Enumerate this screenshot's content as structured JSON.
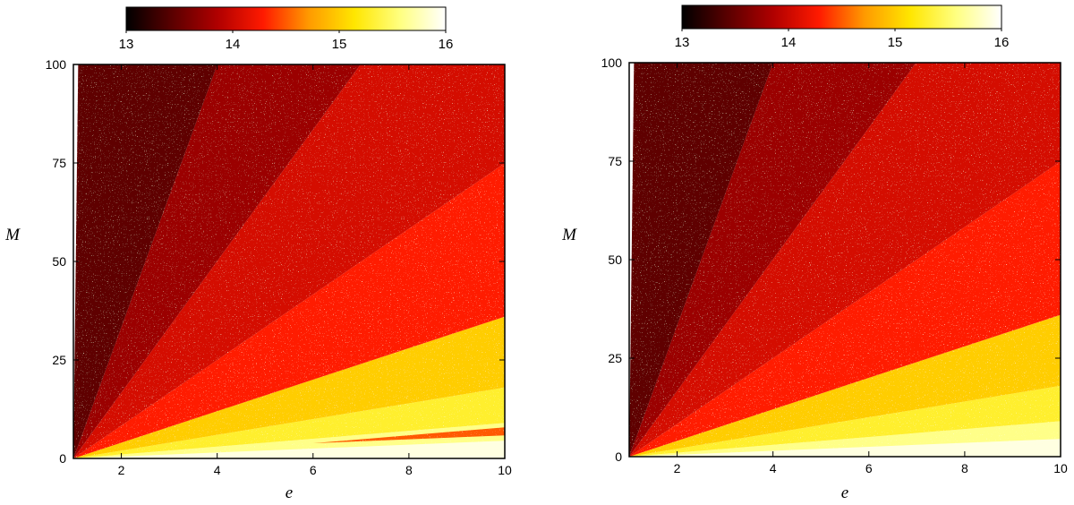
{
  "colorbar": {
    "min": 13,
    "max": 16,
    "ticks": [
      "13",
      "14",
      "15",
      "16"
    ],
    "colormap": [
      "#000000",
      "#5a0000",
      "#b00000",
      "#ff1a00",
      "#ff9a00",
      "#ffe600",
      "#ffff80",
      "#ffffff"
    ]
  },
  "chart_data": [
    {
      "type": "heatmap",
      "xlabel": "e",
      "ylabel": "M",
      "xlim": [
        1,
        10
      ],
      "ylim": [
        0,
        100
      ],
      "xticks": [
        "2",
        "4",
        "6",
        "8",
        "10"
      ],
      "yticks": [
        "0",
        "25",
        "50",
        "75",
        "100"
      ],
      "bands": [
        {
          "slope_below": 0.5,
          "value": 15.9
        },
        {
          "slope_below": 1.0,
          "value": 15.6
        },
        {
          "slope_below": 2.0,
          "value": 15.3
        },
        {
          "slope_below": 4.0,
          "value": 15.0
        },
        {
          "slope_below": 8.33,
          "value": 14.3
        },
        {
          "slope_below": 16.7,
          "value": 14.05
        },
        {
          "slope_below": 33.3,
          "value": 13.75
        },
        {
          "slope_below": 1000,
          "value": 13.45
        }
      ],
      "feature": {
        "x_from": 6,
        "x_to": 10,
        "y_at_end": 7,
        "value": 14.5
      }
    },
    {
      "type": "heatmap",
      "xlabel": "e",
      "ylabel": "M",
      "xlim": [
        1,
        10
      ],
      "ylim": [
        0,
        100
      ],
      "xticks": [
        "2",
        "4",
        "6",
        "8",
        "10"
      ],
      "yticks": [
        "0",
        "25",
        "50",
        "75",
        "100"
      ],
      "bands": [
        {
          "slope_below": 0.5,
          "value": 15.9
        },
        {
          "slope_below": 1.0,
          "value": 15.6
        },
        {
          "slope_below": 2.0,
          "value": 15.3
        },
        {
          "slope_below": 4.0,
          "value": 15.0
        },
        {
          "slope_below": 8.33,
          "value": 14.3
        },
        {
          "slope_below": 16.7,
          "value": 14.05
        },
        {
          "slope_below": 33.3,
          "value": 13.75
        },
        {
          "slope_below": 1000,
          "value": 13.45
        }
      ]
    }
  ]
}
